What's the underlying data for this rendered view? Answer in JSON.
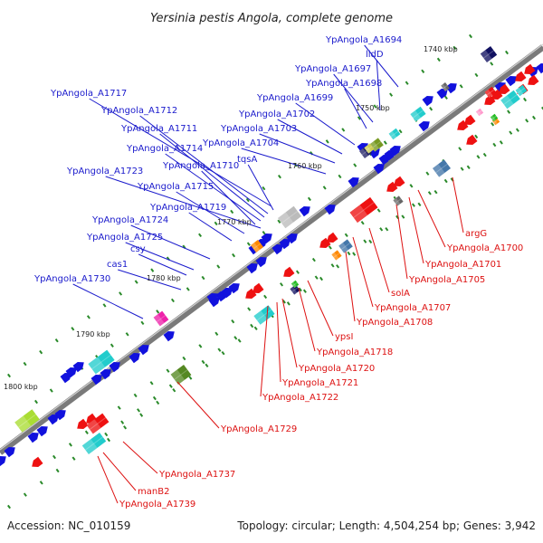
{
  "title": "Yersinia pestis Angola, complete genome",
  "footer": {
    "accession": "Accession: NC_010159",
    "stats": "Topology: circular; Length: 4,504,254 bp; Genes: 3,942"
  },
  "colors": {
    "upper_labels": "#1a1acc",
    "lower_labels": "#dd1111",
    "backbone": "#7a7a7a",
    "tick_dots": "#2a8a2a"
  },
  "ticks": [
    "1740 kbp",
    "1750 kbp",
    "1760 kbp",
    "1770 kbp",
    "1780 kbp",
    "1790 kbp",
    "1800 kbp"
  ],
  "upper_labels": [
    "YpAngola_A1694",
    "lldD",
    "YpAngola_A1697",
    "YpAngola_A1698",
    "YpAngola_A1699",
    "YpAngola_A1717",
    "YpAngola_A1702",
    "YpAngola_A1712",
    "YpAngola_A1703",
    "YpAngola_A1711",
    "YpAngola_A1704",
    "YpAngola_A1714",
    "tqsA",
    "YpAngola_A1710",
    "YpAngola_A1723",
    "YpAngola_A1715",
    "YpAngola_A1719",
    "YpAngola_A1724",
    "YpAngola_A1725",
    "csy",
    "cas1",
    "YpAngola_A1730"
  ],
  "lower_labels": [
    "argG",
    "YpAngola_A1700",
    "YpAngola_A1701",
    "YpAngola_A1705",
    "solA",
    "YpAngola_A1707",
    "YpAngola_A1708",
    "ypsI",
    "YpAngola_A1718",
    "YpAngola_A1720",
    "YpAngola_A1721",
    "YpAngola_A1722",
    "YpAngola_A1729",
    "YpAngola_A1737",
    "manB2",
    "YpAngola_A1739"
  ]
}
